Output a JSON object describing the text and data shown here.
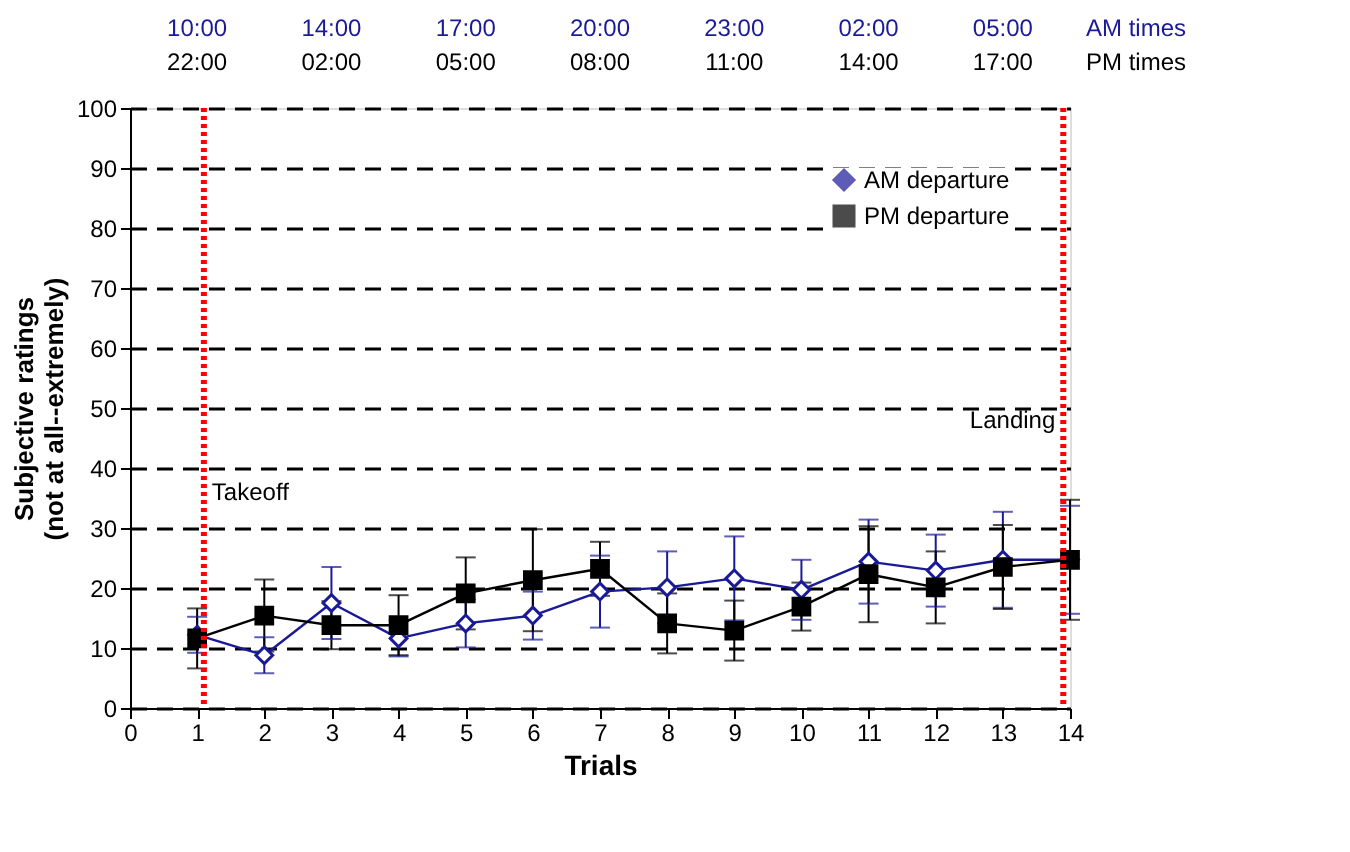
{
  "chart_data": {
    "type": "line",
    "xlabel": "Trials",
    "ylabel": "Subjective ratings\n(not at all--extremely)",
    "x": [
      1,
      2,
      3,
      4,
      5,
      6,
      7,
      8,
      9,
      10,
      11,
      12,
      13,
      14
    ],
    "series": [
      {
        "name": "AM departure",
        "color": "#1a1a99",
        "marker": "diamond",
        "values": [
          12.2,
          8.8,
          17.5,
          11.6,
          14.1,
          15.4,
          19.4,
          20.1,
          21.6,
          19.7,
          24.4,
          22.9,
          24.7,
          24.7
        ],
        "errors": [
          3,
          3,
          6,
          3,
          4,
          4,
          6,
          6,
          7,
          5,
          7,
          6,
          8,
          9
        ]
      },
      {
        "name": "PM departure",
        "color": "#000000",
        "marker": "square",
        "values": [
          11.6,
          15.4,
          13.8,
          13.8,
          19.1,
          21.3,
          23.2,
          14.1,
          12.9,
          16.9,
          22.3,
          20.1,
          23.5,
          24.7
        ],
        "errors": [
          5,
          6,
          4,
          5,
          6,
          8.5,
          4.5,
          5,
          5,
          4,
          8,
          6,
          7,
          10
        ]
      }
    ],
    "xlim": [
      0,
      14
    ],
    "xticks": [
      0,
      1,
      2,
      3,
      4,
      5,
      6,
      7,
      8,
      9,
      10,
      11,
      12,
      13,
      14
    ],
    "ylim": [
      0,
      100
    ],
    "yticks": [
      0,
      10,
      20,
      30,
      40,
      50,
      60,
      70,
      80,
      90,
      100
    ],
    "annotations": [
      "10:00",
      "14:00",
      "17:00",
      "20:00",
      "23:00",
      "02:00",
      "05:00",
      "AM times",
      "22:00",
      "02:00",
      "05:00",
      "08:00",
      "11:00",
      "14:00",
      "17:00",
      "PM times"
    ],
    "ref_lines": [
      {
        "axis": "x",
        "value": 1.1,
        "label": "Takeoff",
        "color": "#ff0000",
        "line_style": "dotted"
      },
      {
        "axis": "x",
        "value": 13.9,
        "label": "Landing",
        "color": "#ff0000",
        "line_style": "dotted"
      }
    ],
    "grid": "y",
    "legend": "top right",
    "line_style": "solid"
  }
}
